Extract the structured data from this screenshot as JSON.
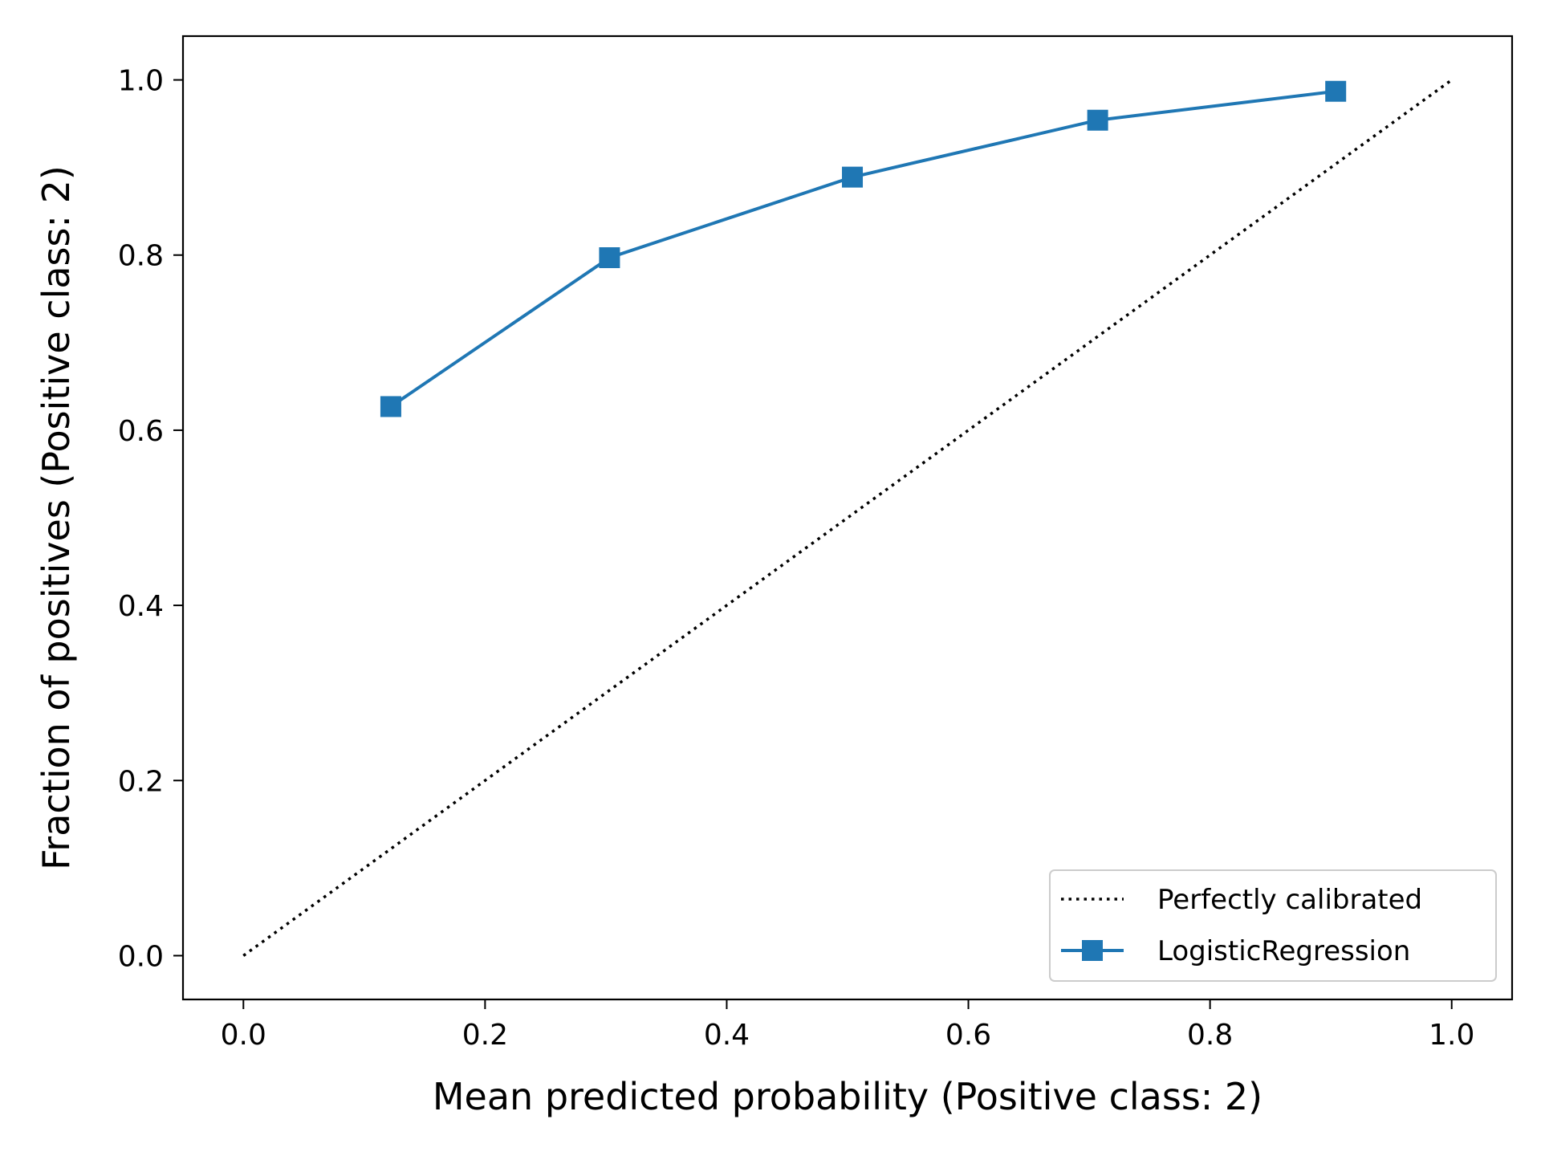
{
  "chart_data": {
    "type": "line",
    "xlabel": "Mean predicted probability (Positive class: 2)",
    "ylabel": "Fraction of positives (Positive class: 2)",
    "xlim": [
      -0.05,
      1.05
    ],
    "ylim": [
      -0.05,
      1.05
    ],
    "xticks": [
      "0.0",
      "0.2",
      "0.4",
      "0.6",
      "0.8",
      "1.0"
    ],
    "yticks": [
      "0.0",
      "0.2",
      "0.4",
      "0.6",
      "0.8",
      "1.0"
    ],
    "grid": false,
    "legend_position": "lower-right",
    "series": [
      {
        "name": "Perfectly calibrated",
        "style": "dotted",
        "color": "#000000",
        "x": [
          0.0,
          1.0
        ],
        "y": [
          0.0,
          1.0
        ]
      },
      {
        "name": "LogisticRegression",
        "style": "solid",
        "marker": "square",
        "color": "#1f77b4",
        "x": [
          0.122,
          0.303,
          0.504,
          0.707,
          0.904
        ],
        "y": [
          0.627,
          0.797,
          0.889,
          0.954,
          0.987
        ]
      }
    ]
  }
}
